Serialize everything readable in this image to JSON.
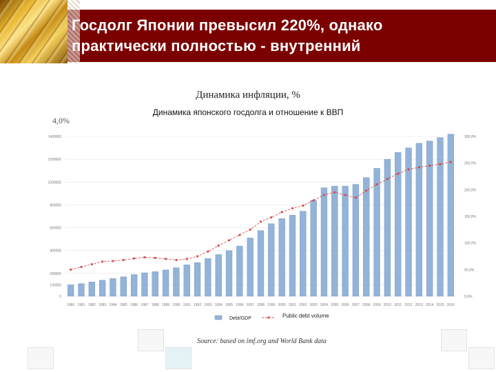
{
  "slide": {
    "title_line1": "Госдолг Японии превысил 220%, однако",
    "title_line2": "практически полностью - внутренний",
    "behind_title": "Динамика инфляции, %",
    "behind_pct": "4,0%",
    "source": "Source: based on imf.org and World Bank data"
  },
  "chart_data": {
    "type": "bar",
    "title": "Динамика японского госдолга и отношение к ВВП",
    "categories": [
      "1980",
      "1981",
      "1982",
      "1983",
      "1984",
      "1985",
      "1986",
      "1987",
      "1988",
      "1989",
      "1990",
      "1991",
      "1992",
      "1993",
      "1994",
      "1995",
      "1996",
      "1997",
      "1998",
      "1999",
      "2000",
      "2001",
      "2002",
      "2003",
      "2004",
      "2005",
      "2006",
      "2007",
      "2008",
      "2009",
      "2010",
      "2011",
      "2012",
      "2013",
      "2014",
      "2015",
      "2016"
    ],
    "series": [
      {
        "name": "Debt/GDP",
        "kind": "bar",
        "axis": "left",
        "values": [
          100000,
          110000,
          125000,
          140000,
          155000,
          170000,
          190000,
          205000,
          215000,
          230000,
          250000,
          275000,
          295000,
          330000,
          365000,
          400000,
          440000,
          510000,
          575000,
          635000,
          680000,
          710000,
          745000,
          840000,
          950000,
          965000,
          965000,
          980000,
          1040000,
          1120000,
          1200000,
          1260000,
          1300000,
          1340000,
          1360000,
          1390000,
          1420000
        ]
      },
      {
        "name": "Public debt volume",
        "kind": "line",
        "axis": "right",
        "values": [
          50,
          55,
          60,
          65,
          66,
          68,
          71,
          73,
          72,
          70,
          68,
          70,
          75,
          84,
          95,
          105,
          115,
          125,
          140,
          148,
          158,
          165,
          170,
          180,
          190,
          195,
          190,
          185,
          198,
          210,
          220,
          230,
          238,
          242,
          245,
          248,
          252
        ]
      }
    ],
    "y_left": {
      "ticks": [
        "0",
        "100000",
        "200000",
        "400000",
        "600000",
        "800000",
        "1000000",
        "1200000",
        "1400000"
      ],
      "max": 1400000
    },
    "y_right": {
      "ticks": [
        "0,0%",
        "50,0%",
        "100,0%",
        "150,0%",
        "200,0%",
        "250,0%",
        "300,0%"
      ],
      "max": 300
    },
    "grid": true,
    "colors": {
      "bar": "#93b3d8",
      "bar_edge": "#6f92c0",
      "line": "#d94a4a"
    }
  }
}
